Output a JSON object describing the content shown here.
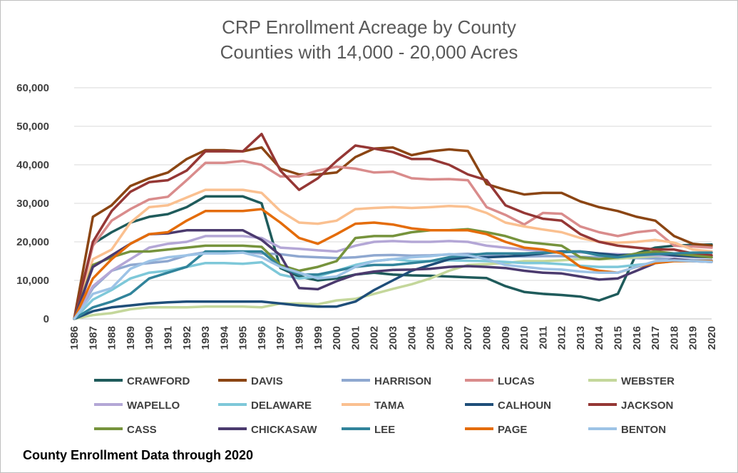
{
  "chart_data": {
    "type": "line",
    "title": "CRP Enrollment Acreage by County",
    "subtitle": "Counties with 14,000 - 20,000 Acres",
    "footnote": "County Enrollment Data through 2020",
    "ylim": [
      0,
      60000
    ],
    "yticks": [
      "0",
      "10,000",
      "20,000",
      "30,000",
      "40,000",
      "50,000",
      "60,000"
    ],
    "x": [
      "1986",
      "1987",
      "1988",
      "1989",
      "1990",
      "1991",
      "1992",
      "1993",
      "1994",
      "1995",
      "1996",
      "1997",
      "1998",
      "1999",
      "2000",
      "2001",
      "2002",
      "2003",
      "2004",
      "2005",
      "2006",
      "2007",
      "2008",
      "2009",
      "2010",
      "2011",
      "2012",
      "2013",
      "2014",
      "2015",
      "2016",
      "2017",
      "2018",
      "2019",
      "2020"
    ],
    "grid": true,
    "legend_position": "bottom",
    "series": [
      {
        "name": "CRAWFORD",
        "color": "#1f5b5b",
        "values": [
          0,
          19500,
          22500,
          25000,
          26500,
          27200,
          29000,
          31800,
          31800,
          31800,
          30000,
          13200,
          11000,
          10000,
          10500,
          11500,
          12000,
          11500,
          11300,
          11200,
          11000,
          10800,
          10600,
          8500,
          7000,
          6500,
          6200,
          5800,
          4800,
          6500,
          17000,
          18500,
          19000,
          19200,
          19300
        ]
      },
      {
        "name": "DAVIS",
        "color": "#8b4513",
        "values": [
          0,
          26500,
          29500,
          34500,
          36500,
          38000,
          41500,
          43800,
          43800,
          43500,
          44500,
          39000,
          37500,
          37500,
          38000,
          42000,
          44200,
          44500,
          42500,
          43500,
          44000,
          43600,
          35000,
          33500,
          32300,
          32700,
          32700,
          30500,
          29000,
          28000,
          26500,
          25500,
          21500,
          19500,
          19000
        ]
      },
      {
        "name": "HARRISON",
        "color": "#8fa8d0",
        "values": [
          0,
          8000,
          12500,
          14000,
          14500,
          15000,
          16500,
          17300,
          17500,
          17500,
          17000,
          16800,
          16200,
          16000,
          15800,
          16000,
          16500,
          16600,
          16400,
          16500,
          16700,
          16900,
          16600,
          16300,
          16200,
          16300,
          16300,
          16100,
          16000,
          15800,
          15800,
          15700,
          15500,
          15300,
          15200
        ]
      },
      {
        "name": "LUCAS",
        "color": "#d98c8c",
        "values": [
          0,
          19000,
          25500,
          28500,
          31000,
          31700,
          36000,
          40500,
          40500,
          41000,
          40000,
          37000,
          37000,
          38500,
          39500,
          39000,
          38000,
          38200,
          36500,
          36200,
          36300,
          36000,
          29000,
          27000,
          24500,
          27500,
          27300,
          24000,
          22500,
          21500,
          22500,
          23000,
          19000,
          18800,
          18500
        ]
      },
      {
        "name": "WEBSTER",
        "color": "#c4d79b",
        "values": [
          0,
          1000,
          1500,
          2500,
          3000,
          3000,
          3000,
          3200,
          3200,
          3200,
          3000,
          4000,
          4000,
          3800,
          4800,
          5200,
          6500,
          7800,
          9000,
          10500,
          12500,
          14000,
          14200,
          14500,
          15000,
          15000,
          15200,
          15500,
          15500,
          15600,
          16000,
          16300,
          16500,
          16500,
          16500
        ]
      },
      {
        "name": "WAPELLO",
        "color": "#b4a7d6",
        "values": [
          0,
          8500,
          12500,
          15500,
          18500,
          19500,
          20000,
          21500,
          21500,
          21500,
          21000,
          18500,
          18200,
          17800,
          17500,
          19000,
          20000,
          20200,
          20000,
          20000,
          20200,
          20000,
          19000,
          18500,
          18000,
          17600,
          17500,
          17300,
          17000,
          16800,
          16500,
          16500,
          16300,
          16100,
          16000
        ]
      },
      {
        "name": "DELAWARE",
        "color": "#7ec8d9",
        "values": [
          0,
          5000,
          7500,
          10500,
          12000,
          12500,
          13500,
          14500,
          14500,
          14300,
          14700,
          11500,
          10500,
          11000,
          12500,
          14000,
          15000,
          15500,
          15000,
          15000,
          15200,
          15100,
          15000,
          14800,
          14500,
          14500,
          14200,
          13800,
          13500,
          13500,
          14000,
          14500,
          15000,
          15000,
          15000
        ]
      },
      {
        "name": "TAMA",
        "color": "#fac090",
        "values": [
          0,
          15500,
          18000,
          25000,
          29000,
          29500,
          31500,
          33500,
          33500,
          33500,
          32700,
          28000,
          25000,
          24700,
          25500,
          28500,
          28800,
          29000,
          28800,
          29000,
          29300,
          29100,
          27500,
          25000,
          24000,
          23200,
          22500,
          21000,
          20000,
          19800,
          20000,
          20500,
          19800,
          18000,
          17500
        ]
      },
      {
        "name": "CALHOUN",
        "color": "#1f4e79",
        "values": [
          0,
          2000,
          3000,
          3500,
          4000,
          4300,
          4500,
          4500,
          4500,
          4500,
          4500,
          4000,
          3500,
          3200,
          3200,
          4500,
          7500,
          10000,
          12500,
          14000,
          15500,
          16000,
          16000,
          16200,
          16500,
          17000,
          17500,
          17500,
          17000,
          16500,
          16800,
          17000,
          16500,
          16200,
          16000
        ]
      },
      {
        "name": "JACKSON",
        "color": "#953735",
        "values": [
          0,
          20000,
          28000,
          33000,
          35500,
          36000,
          38500,
          43500,
          43500,
          43500,
          48000,
          38500,
          33500,
          36500,
          41000,
          45000,
          44200,
          43300,
          41500,
          41500,
          40000,
          37500,
          36000,
          29500,
          27500,
          26000,
          25500,
          22000,
          20000,
          19000,
          18500,
          18000,
          18000,
          17000,
          16500
        ]
      },
      {
        "name": "CASS",
        "color": "#76933c",
        "values": [
          0,
          14000,
          16000,
          17500,
          17500,
          18000,
          18500,
          19000,
          19000,
          19000,
          18700,
          14000,
          12500,
          13500,
          15000,
          21000,
          21500,
          21500,
          22500,
          23000,
          23000,
          23300,
          22500,
          21500,
          20000,
          19500,
          19000,
          16000,
          15500,
          16000,
          17000,
          17500,
          17000,
          16500,
          16000
        ]
      },
      {
        "name": "CHICKASAW",
        "color": "#4b3a6e",
        "values": [
          0,
          13500,
          16500,
          19500,
          22000,
          22200,
          23000,
          23000,
          23000,
          23000,
          20500,
          16500,
          8000,
          7700,
          9800,
          11500,
          12300,
          12700,
          12800,
          13000,
          13500,
          13700,
          13500,
          13200,
          12500,
          12000,
          11800,
          11000,
          10200,
          10500,
          12500,
          14500,
          15500,
          15000,
          14800
        ]
      },
      {
        "name": "LEE",
        "color": "#31849b",
        "values": [
          0,
          3000,
          4500,
          6500,
          10500,
          12000,
          13500,
          17500,
          17500,
          17500,
          17500,
          13500,
          11500,
          11500,
          12500,
          13500,
          14000,
          14000,
          14500,
          15000,
          16000,
          16500,
          17000,
          17000,
          17000,
          17200,
          17300,
          17500,
          16500,
          16000,
          16500,
          16800,
          17000,
          17200,
          17200
        ]
      },
      {
        "name": "PAGE",
        "color": "#e46c0a",
        "values": [
          0,
          10500,
          15500,
          19500,
          22000,
          22500,
          25500,
          28000,
          28000,
          28000,
          28500,
          25000,
          21000,
          19500,
          22000,
          24700,
          25000,
          24500,
          23500,
          23000,
          23000,
          23000,
          22000,
          20000,
          18500,
          18000,
          17000,
          13500,
          12500,
          12000,
          13500,
          14500,
          15000,
          15000,
          15000
        ]
      },
      {
        "name": "BENTON",
        "color": "#9dc3e6",
        "values": [
          0,
          6500,
          8000,
          13000,
          15000,
          16000,
          16500,
          17000,
          17000,
          17200,
          16000,
          13500,
          12000,
          10500,
          11000,
          13500,
          15000,
          15500,
          16000,
          16300,
          16800,
          16500,
          15500,
          14000,
          13500,
          13000,
          12800,
          12300,
          12000,
          12000,
          13500,
          15000,
          15200,
          15000,
          14800
        ]
      }
    ]
  }
}
